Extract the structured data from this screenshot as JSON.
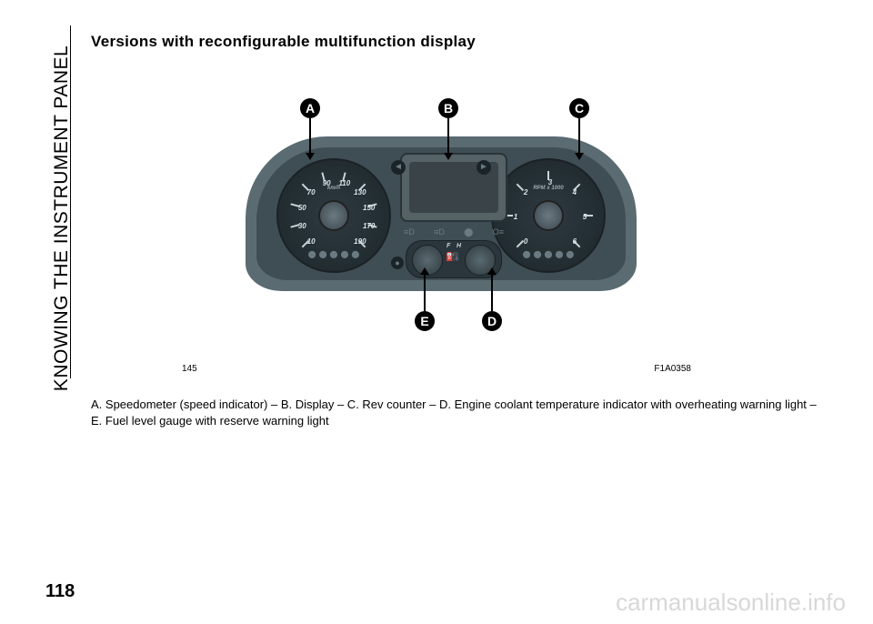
{
  "chapter": "KNOWING THE INSTRUMENT PANEL",
  "title": "Versions with reconfigurable multifunction display",
  "figure_num": "145",
  "figure_code": "F1A0358",
  "caption": "A. Speedometer (speed indicator) – B. Display – C. Rev counter – D. Engine coolant temperature indicator with overheating warning light – E. Fuel level gauge with reserve warning light",
  "page_number": "118",
  "watermark": "carmanualsonline.info",
  "callouts": {
    "a": "A",
    "b": "B",
    "c": "C",
    "d": "D",
    "e": "E"
  },
  "speedo": {
    "label": "km/h",
    "numbers": [
      "10",
      "30",
      "50",
      "70",
      "90",
      "110",
      "130",
      "150",
      "170",
      "190"
    ],
    "colors": {
      "face": "#1c262a",
      "text": "#d8e2e6"
    }
  },
  "tacho": {
    "label": "RPM x 1000",
    "numbers": [
      "0",
      "1",
      "2",
      "3",
      "4",
      "5",
      "6"
    ],
    "colors": {
      "face": "#1c262a",
      "text": "#d8e2e6"
    }
  },
  "mini": {
    "fuel_label": "F",
    "temp_label": "H"
  },
  "palette": {
    "cluster_outer": "#5a6b72",
    "cluster_inner": "#3f4e54",
    "gauge_face": "#1c262a",
    "gauge_text": "#d8e2e6",
    "icon": "#6a7a80",
    "page_bg": "#ffffff",
    "text": "#000000",
    "watermark": "#d8d8d8"
  }
}
